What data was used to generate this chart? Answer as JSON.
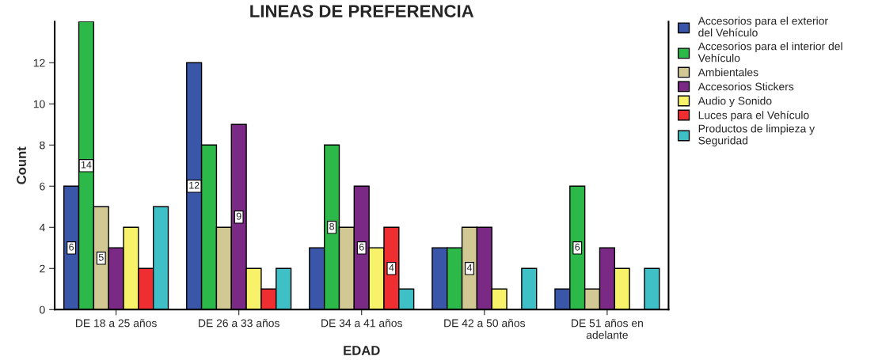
{
  "chart_data": {
    "type": "bar",
    "title": "LINEAS DE PREFERENCIA",
    "xlabel": "EDAD",
    "ylabel": "Count",
    "categories": [
      "DE 18 a 25 años",
      "DE 26 a 33 años",
      "DE 34 a 41 años",
      "DE 42 a 50 años",
      "DE 51 años en\nadelante"
    ],
    "series": [
      {
        "name": "Accesorios para el exterior\ndel Vehículo",
        "color": "#3a56a8",
        "values": [
          6,
          12,
          3,
          3,
          1
        ],
        "value_labels": [
          "6",
          "12",
          null,
          null,
          null
        ]
      },
      {
        "name": "Accesorios para el interior del\nVehículo",
        "color": "#2db84a",
        "values": [
          14,
          8,
          8,
          3,
          6
        ],
        "value_labels": [
          "14",
          null,
          "8",
          null,
          "6"
        ]
      },
      {
        "name": "Ambientales",
        "color": "#d2c893",
        "values": [
          5,
          4,
          4,
          4,
          1
        ],
        "value_labels": [
          "5",
          null,
          null,
          "4",
          null
        ]
      },
      {
        "name": "Accesorios Stickers",
        "color": "#7a2a84",
        "values": [
          3,
          9,
          6,
          4,
          3
        ],
        "value_labels": [
          null,
          "9",
          "6",
          null,
          null
        ]
      },
      {
        "name": "Audio y Sonido",
        "color": "#f8f26a",
        "values": [
          4,
          2,
          3,
          1,
          2
        ]
      },
      {
        "name": "Luces para el Vehículo",
        "color": "#ee2e31",
        "values": [
          2,
          1,
          4,
          null,
          null
        ],
        "value_labels": [
          null,
          null,
          "4",
          null,
          null
        ]
      },
      {
        "name": "Productos de limpieza y\nSeguridad",
        "color": "#3fbfc6",
        "values": [
          5,
          2,
          1,
          2,
          2
        ]
      }
    ],
    "ylim": [
      0,
      14
    ],
    "yticks": [
      0,
      2,
      4,
      6,
      8,
      10,
      12
    ],
    "grid": false,
    "legend": "right"
  }
}
